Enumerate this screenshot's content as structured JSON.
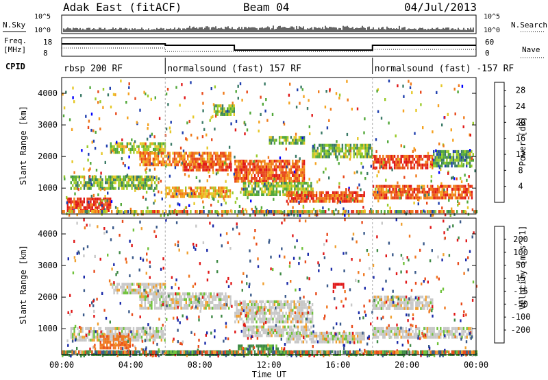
{
  "header": {
    "title": "Adak East (fitACF)",
    "beam": "Beam 04",
    "date": "04/Jul/2013"
  },
  "nsky_panel": {
    "label": "N.Sky",
    "right_label": "N.Search",
    "ticks_left": [
      "10^5",
      "10^0"
    ],
    "ticks_right": [
      "10^5",
      "10^0"
    ]
  },
  "freq_panel": {
    "label_line1": "Freq.",
    "label_line2": "[MHz]",
    "ticks_left": [
      "18",
      "8"
    ],
    "ticks_right": [
      "60",
      "0"
    ],
    "right_label": "Nave"
  },
  "cpid_panel": {
    "label": "CPID",
    "segments": [
      {
        "start_hour": 0,
        "end_hour": 6,
        "text": "rbsp 200 RF"
      },
      {
        "start_hour": 6,
        "end_hour": 18,
        "text": "normalsound (fast) 157 RF"
      },
      {
        "start_hour": 18,
        "end_hour": 24,
        "text": "normalsound (fast) -157 RF"
      }
    ]
  },
  "chart_data": [
    {
      "type": "heatmap",
      "name": "power",
      "ylabel": "Slant Range [km]",
      "yticks": [
        "1000",
        "2000",
        "3000",
        "4000"
      ],
      "ylim": [
        180,
        4500
      ],
      "xlim": [
        0,
        24
      ],
      "colorbar": {
        "label": "Power [dB]",
        "ticks": [
          "4",
          "8",
          "12",
          "16",
          "20",
          "24",
          "28"
        ],
        "range": [
          0,
          30
        ],
        "colors": [
          "#0000ff",
          "#1f3fae",
          "#3a7a66",
          "#52a83a",
          "#9acb2a",
          "#e6c828",
          "#f5a21f",
          "#f07a1a",
          "#e8481a",
          "#e01818"
        ]
      },
      "bands": [
        {
          "t0": 0.3,
          "t1": 2.8,
          "r0": 300,
          "r1": 700,
          "power": 27
        },
        {
          "t0": 0.5,
          "t1": 5.5,
          "r0": 1000,
          "r1": 1400,
          "power": 12
        },
        {
          "t0": 2.8,
          "t1": 6.0,
          "r0": 2150,
          "r1": 2450,
          "power": 14
        },
        {
          "t0": 4.5,
          "t1": 9.8,
          "r0": 1750,
          "r1": 2150,
          "power": 22
        },
        {
          "t0": 7.0,
          "t1": 9.8,
          "r0": 1550,
          "r1": 1800,
          "power": 27
        },
        {
          "t0": 6.0,
          "t1": 9.8,
          "r0": 750,
          "r1": 1050,
          "power": 19
        },
        {
          "t0": 10.0,
          "t1": 14.0,
          "r0": 1250,
          "r1": 1900,
          "power": 24
        },
        {
          "t0": 10.5,
          "t1": 14.5,
          "r0": 800,
          "r1": 1200,
          "power": 13
        },
        {
          "t0": 13.0,
          "t1": 17.5,
          "r0": 550,
          "r1": 900,
          "power": 25
        },
        {
          "t0": 14.5,
          "t1": 18.0,
          "r0": 2000,
          "r1": 2400,
          "power": 12
        },
        {
          "t0": 18.0,
          "t1": 21.5,
          "r0": 1600,
          "r1": 2050,
          "power": 26
        },
        {
          "t0": 18.0,
          "t1": 23.8,
          "r0": 700,
          "r1": 1100,
          "power": 24
        },
        {
          "t0": 21.5,
          "t1": 23.8,
          "r0": 1700,
          "r1": 2200,
          "power": 10
        },
        {
          "t0": 8.8,
          "t1": 10.0,
          "r0": 3300,
          "r1": 3650,
          "power": 12
        },
        {
          "t0": 12.0,
          "t1": 14.0,
          "r0": 2450,
          "r1": 2650,
          "power": 12
        }
      ]
    },
    {
      "type": "heatmap",
      "name": "velocity",
      "ylabel": "Slant Range [km]",
      "yticks": [
        "1000",
        "2000",
        "3000",
        "4000"
      ],
      "ylim": [
        180,
        4500
      ],
      "xlim": [
        0,
        24
      ],
      "xlabel": "Time UT",
      "xticks": [
        "00:00",
        "04:00",
        "08:00",
        "12:00",
        "16:00",
        "20:00",
        "00:00"
      ],
      "colorbar": {
        "label": "Velocity [m s^-1]",
        "ticks": [
          "200",
          "100",
          "50",
          "15",
          "-15",
          "-50",
          "-100",
          "-200"
        ],
        "colors": [
          "#1a2aa8",
          "#3a5a8a",
          "#3f8a46",
          "#6fc23a",
          "#c8c8c8",
          "#f0a030",
          "#f07820",
          "#e84a1a",
          "#e01818"
        ]
      },
      "bands": [
        {
          "t0": 0.5,
          "t1": 6.0,
          "r0": 650,
          "r1": 1050,
          "velocity": 0
        },
        {
          "t0": 2.8,
          "t1": 6.0,
          "r0": 2150,
          "r1": 2450,
          "velocity": 0
        },
        {
          "t0": 4.5,
          "t1": 9.8,
          "r0": 1650,
          "r1": 2150,
          "velocity": 0
        },
        {
          "t0": 10.0,
          "t1": 14.5,
          "r0": 1250,
          "r1": 1900,
          "velocity": 0
        },
        {
          "t0": 10.5,
          "t1": 14.5,
          "r0": 800,
          "r1": 1100,
          "velocity": 0
        },
        {
          "t0": 13.0,
          "t1": 17.5,
          "r0": 550,
          "r1": 900,
          "velocity": 0
        },
        {
          "t0": 18.0,
          "t1": 23.8,
          "r0": 700,
          "r1": 1050,
          "velocity": 0
        },
        {
          "t0": 18.0,
          "t1": 21.5,
          "r0": 1600,
          "r1": 2050,
          "velocity": 0
        },
        {
          "t0": 2.2,
          "t1": 4.0,
          "r0": 350,
          "r1": 800,
          "velocity": -60
        },
        {
          "t0": 10.2,
          "t1": 12.5,
          "r0": 350,
          "r1": 500,
          "velocity": 40
        },
        {
          "t0": 15.7,
          "t1": 16.3,
          "r0": 2300,
          "r1": 2450,
          "velocity": -200
        },
        {
          "t0": 0.0,
          "t1": 24.0,
          "r0": 180,
          "r1": 320,
          "velocity": 40
        }
      ]
    }
  ]
}
